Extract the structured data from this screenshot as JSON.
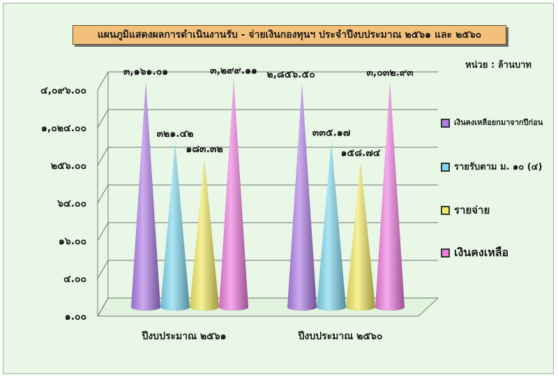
{
  "title": "แผนภูมิแสดงผลการดำเนินงานรับ - จ่ายเงินกองทุนฯ  ประจำปีงบประมาณ ๒๕๖๑ และ ๒๕๖๐",
  "unit_label": "หน่วย : ล้านบาท",
  "chart_data": {
    "type": "bar",
    "style": "3d-cone",
    "scale": "log2",
    "ylim": [
      1,
      4096
    ],
    "y_ticks": [
      {
        "value": 1,
        "label": "๑.๐๐"
      },
      {
        "value": 4,
        "label": "๔.๐๐"
      },
      {
        "value": 16,
        "label": "๑๖.๐๐"
      },
      {
        "value": 64,
        "label": "๖๔.๐๐"
      },
      {
        "value": 256,
        "label": "๒๕๖.๐๐"
      },
      {
        "value": 1024,
        "label": "๑,๐๒๔.๐๐"
      },
      {
        "value": 4096,
        "label": "๔,๐๙๖.๐๐"
      }
    ],
    "categories": [
      "ปีงบประมาณ ๒๕๖๑",
      "ปีงบประมาณ ๒๕๖๐"
    ],
    "series": [
      {
        "name": "เงินคงเหลือยกมาจากปีก่อน",
        "color": "#b07ee8",
        "values": [
          3161.01,
          2856.5
        ],
        "labels": [
          "๓,๑๖๑.๐๑",
          "๒,๘๕๖.๕๐"
        ]
      },
      {
        "name": "รายรับตาม ม. ๑๐ (๔)",
        "color": "#7fd8f0",
        "values": [
          321.42,
          335.17
        ],
        "labels": [
          "๓๒๑.๔๒",
          "๓๓๕.๑๗"
        ]
      },
      {
        "name": "รายจ่าย",
        "color": "#f2ea62",
        "values": [
          183.32,
          158.74
        ],
        "labels": [
          "๑๘๓.๓๒",
          "๑๕๘.๗๔"
        ]
      },
      {
        "name": "เงินคงเหลือ",
        "color": "#f07ee0",
        "values": [
          3299.11,
          3032.93
        ],
        "labels": [
          "๓,๒๙๙.๑๑",
          "๓,๐๓๒.๙๓"
        ]
      }
    ],
    "legend_position": "right",
    "grid": true
  }
}
